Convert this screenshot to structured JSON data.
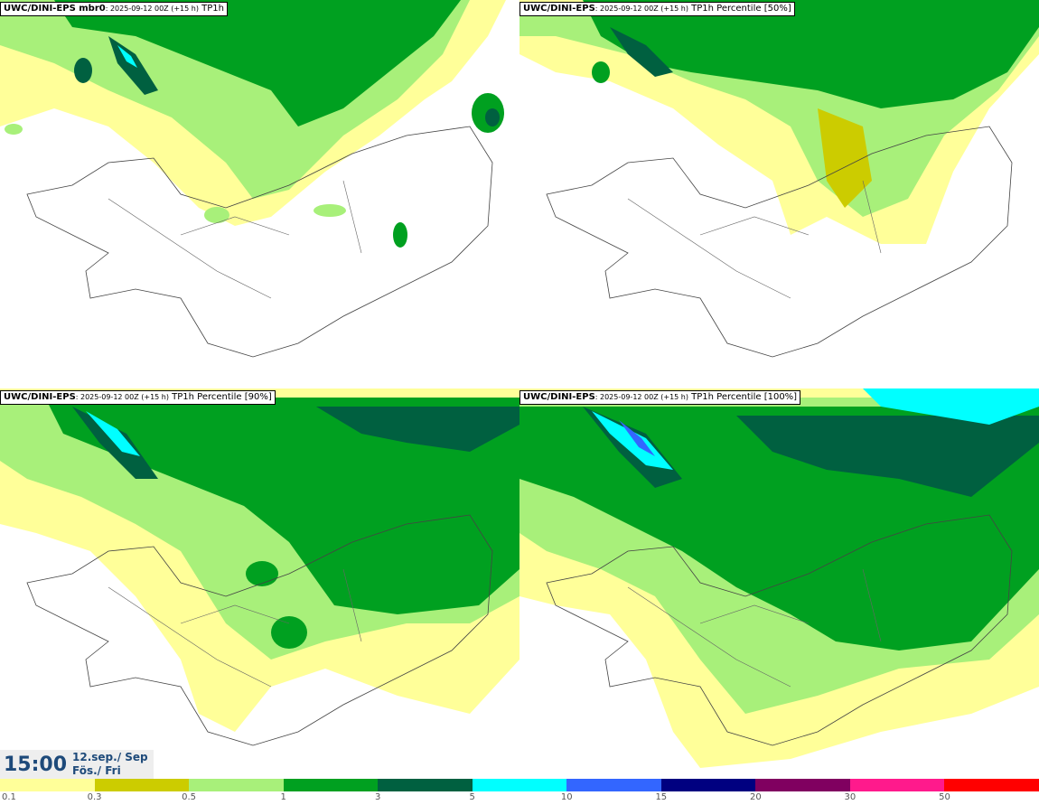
{
  "panels": [
    {
      "model": "UWC/DINI-EPS mbr0",
      "run": ": 2025-09-12 00Z (+15 h)",
      "field": " TP1h"
    },
    {
      "model": "UWC/DINI-EPS",
      "run": ": 2025-09-12 00Z (+15 h)",
      "field": " TP1h Percentile [50%]"
    },
    {
      "model": "UWC/DINI-EPS",
      "run": ": 2025-09-12 00Z (+15 h)",
      "field": " TP1h Percentile [90%]"
    },
    {
      "model": "UWC/DINI-EPS",
      "run": ": 2025-09-12 00Z (+15 h)",
      "field": " TP1h Percentile [100%]"
    }
  ],
  "valid_time": {
    "time": "15:00",
    "date_line1": "12.sep./ Sep",
    "date_line2": "Fös./ Fri"
  },
  "legend": {
    "levels": [
      "0.1",
      "0.3",
      "0.5",
      "1",
      "3",
      "5",
      "10",
      "15",
      "20",
      "30",
      "50"
    ],
    "colors": [
      "#ffff99",
      "#cccc00",
      "#a8f07a",
      "#00a020",
      "#006040",
      "#00ffff",
      "#3366ff",
      "#000080",
      "#800060",
      "#ff1a8c",
      "#ff0000"
    ]
  }
}
